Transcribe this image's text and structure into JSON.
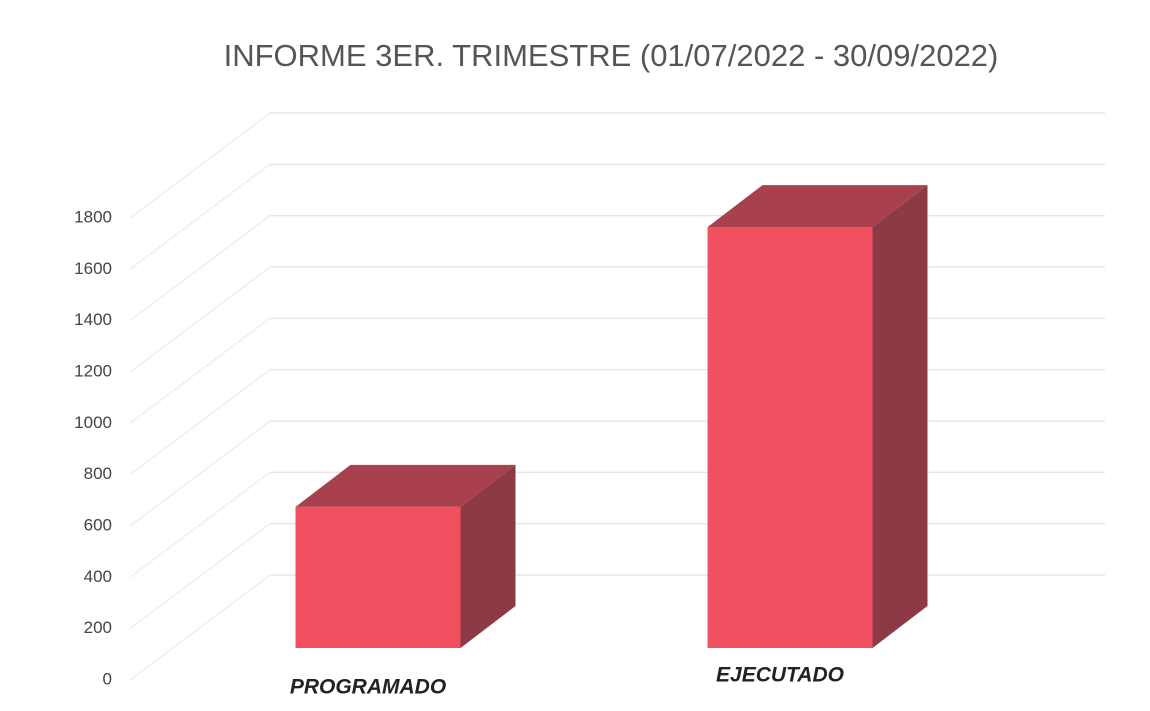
{
  "chart_data": {
    "type": "bar3d",
    "title": "INFORME 3ER. TRIMESTRE (01/07/2022 - 30/09/2022)",
    "categories": [
      "PROGRAMADO",
      "EJECUTADO"
    ],
    "values": [
      550,
      1640
    ],
    "color": "#f0505f",
    "ylim": [
      0,
      1800
    ],
    "yticks": [
      0,
      200,
      400,
      600,
      800,
      1000,
      1200,
      1400,
      1600,
      1800
    ],
    "grid": true
  }
}
